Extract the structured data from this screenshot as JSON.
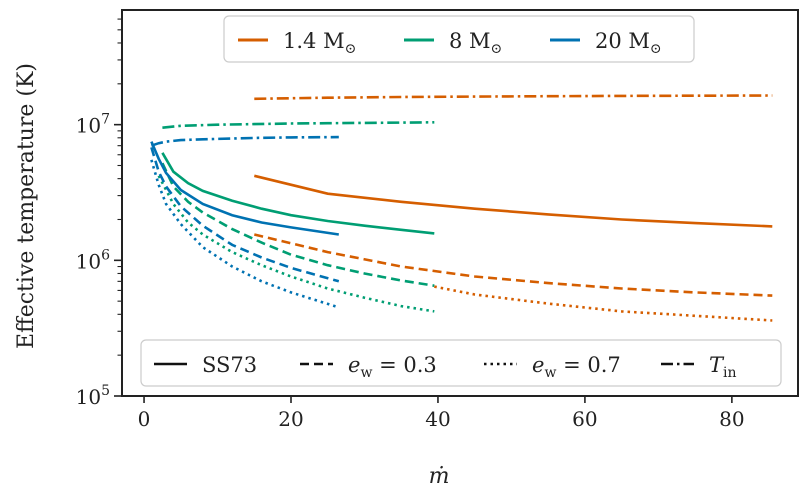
{
  "chart_data": {
    "type": "line",
    "xlabel": "ṁ",
    "ylabel": "Effective temperature (K)",
    "xlim": [
      -3,
      89
    ],
    "ylim": [
      100000,
      70000000
    ],
    "yscale": "log",
    "xticks": [
      0,
      20,
      40,
      60,
      80
    ],
    "xtick_labels": [
      "0",
      "20",
      "40",
      "60",
      "80"
    ],
    "yticks": [
      100000,
      1000000,
      10000000
    ],
    "ytick_labels": [
      {
        "base": "10",
        "exp": "5"
      },
      {
        "base": "10",
        "exp": "6"
      },
      {
        "base": "10",
        "exp": "7"
      }
    ],
    "color_legend": [
      {
        "label": "1.4 M",
        "sub": "⊙",
        "color": "#d55e00"
      },
      {
        "label": "8 M",
        "sub": "⊙",
        "color": "#009e73"
      },
      {
        "label": "20 M",
        "sub": "⊙",
        "color": "#0072b2"
      }
    ],
    "style_legend": [
      {
        "label": "SS73",
        "style": "solid"
      },
      {
        "label": "e_w = 0.3",
        "style": "dashed",
        "math": {
          "var": "e",
          "sub": "w",
          "rest": " = 0.3"
        }
      },
      {
        "label": "e_w = 0.7",
        "style": "dotted",
        "math": {
          "var": "e",
          "sub": "w",
          "rest": " = 0.7"
        }
      },
      {
        "label": "T_in",
        "style": "dashdot",
        "math": {
          "var": "T",
          "sub": "in",
          "rest": ""
        }
      }
    ],
    "series": [
      {
        "name": "1.4 M⊙ SS73",
        "mass": "1.4",
        "color": "#d55e00",
        "style": "solid",
        "x": [
          15,
          25,
          35,
          45,
          55,
          65,
          75,
          85.5
        ],
        "y": [
          4200000,
          3100000,
          2700000,
          2400000,
          2180000,
          2000000,
          1880000,
          1780000
        ]
      },
      {
        "name": "1.4 M⊙ e_w = 0.3",
        "mass": "1.4",
        "color": "#d55e00",
        "style": "dashed",
        "x": [
          15,
          25,
          35,
          45,
          55,
          65,
          75,
          85.5
        ],
        "y": [
          1550000,
          1150000,
          900000,
          760000,
          680000,
          620000,
          580000,
          550000
        ]
      },
      {
        "name": "1.4 M⊙ e_w = 0.7",
        "mass": "1.4",
        "color": "#d55e00",
        "style": "dotted",
        "x": [
          39.5,
          45,
          55,
          65,
          75,
          85.5
        ],
        "y": [
          640000,
          560000,
          480000,
          420000,
          390000,
          360000
        ]
      },
      {
        "name": "1.4 M⊙ T_in",
        "mass": "1.4",
        "color": "#d55e00",
        "style": "dashdot",
        "x": [
          15,
          25,
          35,
          45,
          55,
          65,
          75,
          85.5
        ],
        "y": [
          15500000,
          15800000,
          16000000,
          16100000,
          16200000,
          16300000,
          16350000,
          16400000
        ]
      },
      {
        "name": "8 M⊙ SS73",
        "mass": "8",
        "color": "#009e73",
        "style": "solid",
        "x": [
          2.5,
          4,
          6,
          8,
          12,
          16,
          20,
          25,
          30,
          35,
          39.5
        ],
        "y": [
          6200000,
          4500000,
          3700000,
          3250000,
          2750000,
          2400000,
          2150000,
          1950000,
          1800000,
          1680000,
          1580000
        ]
      },
      {
        "name": "8 M⊙ e_w = 0.3",
        "mass": "8",
        "color": "#009e73",
        "style": "dashed",
        "x": [
          2.5,
          4,
          6,
          8,
          12,
          16,
          20,
          25,
          30,
          35,
          39.5
        ],
        "y": [
          5200000,
          3500000,
          2700000,
          2250000,
          1700000,
          1350000,
          1100000,
          920000,
          800000,
          710000,
          650000
        ]
      },
      {
        "name": "8 M⊙ e_w = 0.7",
        "mass": "8",
        "color": "#009e73",
        "style": "dotted",
        "x": [
          2,
          4,
          6,
          8,
          12,
          16,
          20,
          25,
          30,
          35,
          39.5
        ],
        "y": [
          4200000,
          2600000,
          1900000,
          1550000,
          1150000,
          920000,
          760000,
          620000,
          530000,
          460000,
          420000
        ]
      },
      {
        "name": "8 M⊙ T_in",
        "mass": "8",
        "color": "#009e73",
        "style": "dashdot",
        "x": [
          2.5,
          5,
          10,
          15,
          20,
          25,
          30,
          35,
          39.5
        ],
        "y": [
          9500000,
          9800000,
          10000000,
          10100000,
          10200000,
          10250000,
          10300000,
          10350000,
          10400000
        ]
      },
      {
        "name": "20 M⊙ SS73",
        "mass": "20",
        "color": "#0072b2",
        "style": "solid",
        "x": [
          1,
          2,
          3,
          5,
          8,
          12,
          16,
          20,
          26.5
        ],
        "y": [
          7500000,
          5600000,
          4400000,
          3300000,
          2600000,
          2150000,
          1900000,
          1750000,
          1550000
        ]
      },
      {
        "name": "20 M⊙ e_w = 0.3",
        "mass": "20",
        "color": "#0072b2",
        "style": "dashed",
        "x": [
          1,
          2,
          3,
          5,
          8,
          12,
          16,
          20,
          26.5
        ],
        "y": [
          6800000,
          4500000,
          3500000,
          2500000,
          1800000,
          1300000,
          1050000,
          880000,
          700000
        ]
      },
      {
        "name": "20 M⊙ e_w = 0.7",
        "mass": "20",
        "color": "#0072b2",
        "style": "dotted",
        "x": [
          1,
          2,
          3,
          5,
          8,
          12,
          16,
          20,
          26.5
        ],
        "y": [
          5500000,
          3600000,
          2600000,
          1850000,
          1250000,
          900000,
          700000,
          580000,
          450000
        ]
      },
      {
        "name": "20 M⊙ T_in",
        "mass": "20",
        "color": "#0072b2",
        "style": "dashdot",
        "x": [
          1,
          2,
          3,
          5,
          8,
          12,
          16,
          20,
          26.5
        ],
        "y": [
          7000000,
          7300000,
          7500000,
          7700000,
          7800000,
          7900000,
          8000000,
          8050000,
          8100000
        ]
      }
    ]
  }
}
